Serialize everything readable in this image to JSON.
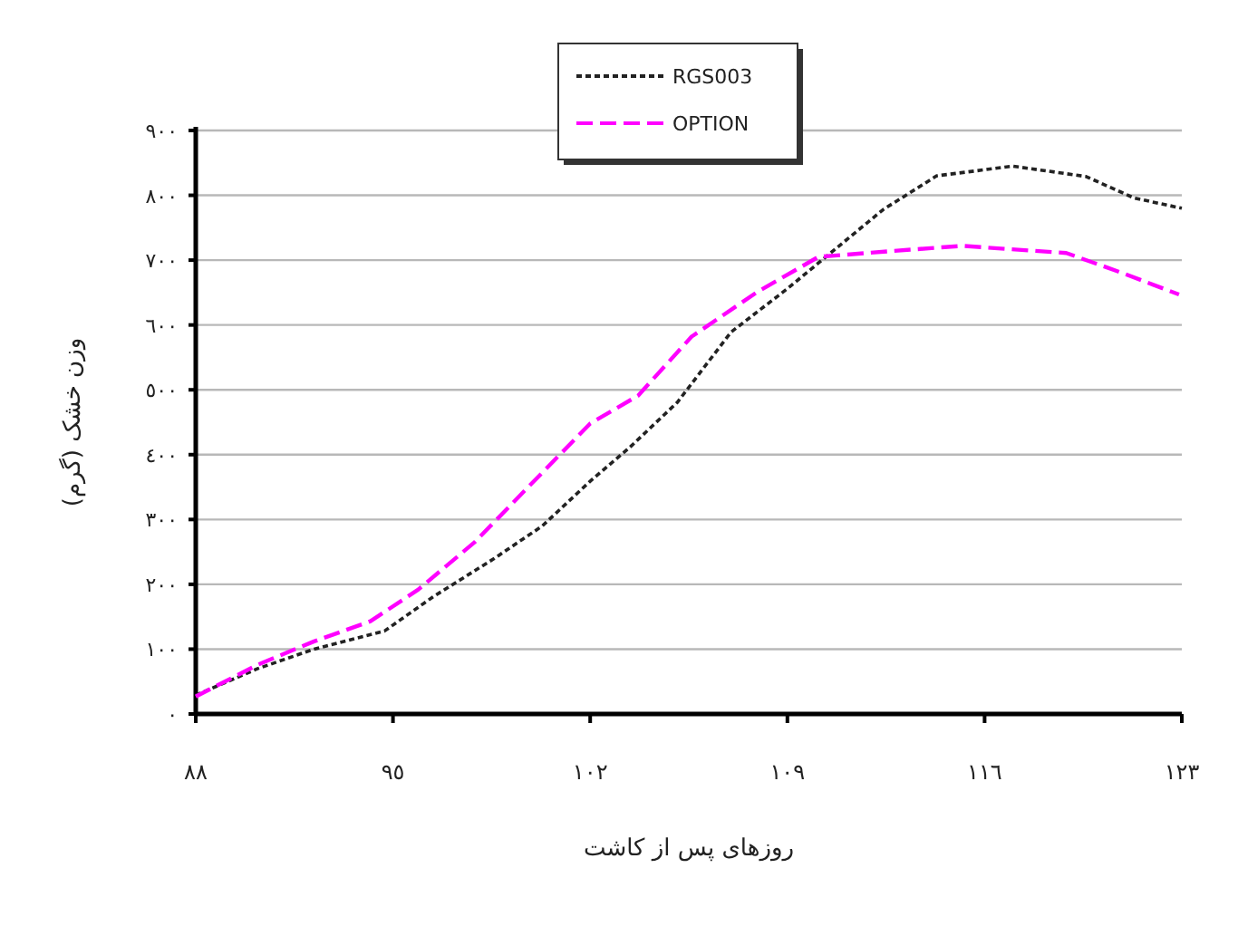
{
  "chart_data": {
    "type": "line",
    "xlabel": "روزهای پس از کاشت",
    "ylabel": "وزن خشک (گرم)",
    "xlim": [
      88,
      123
    ],
    "xticks": [
      {
        "value": 88,
        "label": "٨٨"
      },
      {
        "value": 95,
        "label": "٩٥"
      },
      {
        "value": 102,
        "label": "١٠٢"
      },
      {
        "value": 109,
        "label": "١٠٩"
      },
      {
        "value": 116,
        "label": "١١٦"
      },
      {
        "value": 123,
        "label": "١٢٣"
      }
    ],
    "ylim": [
      0,
      900
    ],
    "yticks": [
      {
        "value": 0,
        "label": "٠"
      },
      {
        "value": 100,
        "label": "١٠٠"
      },
      {
        "value": 200,
        "label": "٢٠٠"
      },
      {
        "value": 300,
        "label": "٣٠٠"
      },
      {
        "value": 400,
        "label": "٤٠٠"
      },
      {
        "value": 500,
        "label": "٥٠٠"
      },
      {
        "value": 600,
        "label": "٦٠٠"
      },
      {
        "value": 700,
        "label": "٧٠٠"
      },
      {
        "value": 800,
        "label": "٨٠٠"
      },
      {
        "value": 900,
        "label": "٩٠٠"
      }
    ],
    "grid": "y",
    "legend": "top",
    "marker": "none",
    "series": [
      {
        "name": "RGS003",
        "color": "#222222",
        "line_style": "dotted",
        "x": [
          88,
          90.2,
          92.2,
          94.7,
          96.4,
          98.6,
          100.3,
          102,
          103.4,
          105.1,
          107,
          109,
          110.7,
          112.4,
          114.3,
          117,
          119.6,
          121.3,
          123
        ],
        "values": [
          29,
          70,
          100,
          128,
          180,
          240,
          290,
          359,
          411,
          481,
          589,
          656,
          717,
          778,
          830,
          845,
          829,
          796,
          780
        ]
      },
      {
        "name": "OPTION",
        "color": "#ff00ff",
        "line_style": "dashed",
        "x": [
          88,
          90.2,
          92.2,
          94.2,
          95.9,
          97.9,
          99.8,
          102,
          103.7,
          105.6,
          107.9,
          110.1,
          112.7,
          115.2,
          118.9,
          120.9,
          122.9
        ],
        "values": [
          27,
          76,
          112,
          143,
          192,
          265,
          350,
          448,
          491,
          582,
          650,
          705,
          714,
          722,
          711,
          680,
          647
        ]
      }
    ]
  }
}
